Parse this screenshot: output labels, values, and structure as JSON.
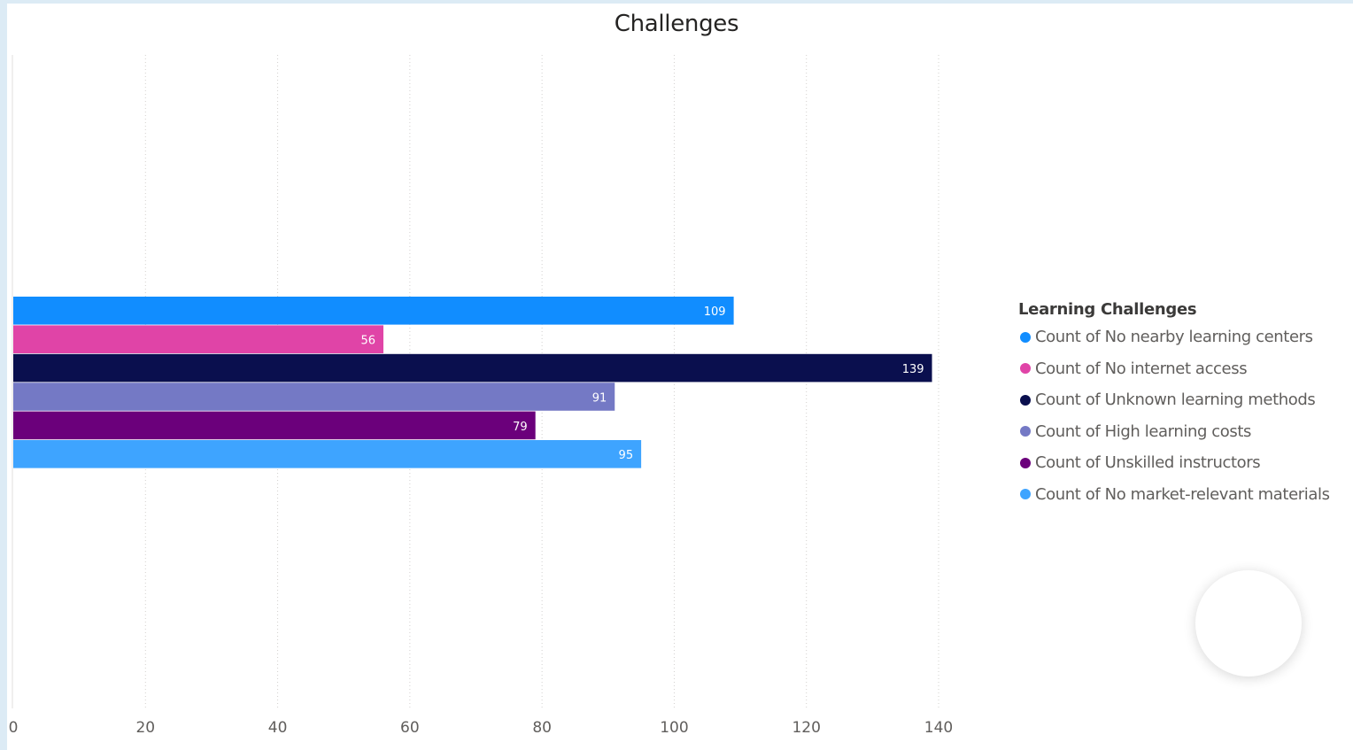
{
  "chart_data": {
    "type": "bar",
    "orientation": "horizontal",
    "title": "Challenges",
    "xlim": [
      0,
      140
    ],
    "x_ticks": [
      "0",
      "20",
      "40",
      "60",
      "80",
      "100",
      "120",
      "140"
    ],
    "grid": "vertical dotted",
    "data_labels": true,
    "legend": {
      "title": "Learning Challenges",
      "placement": "right"
    },
    "series": [
      {
        "name": "Count of No nearby learning centers",
        "values": [
          109
        ],
        "color": "#118DFF"
      },
      {
        "name": "Count of No internet access",
        "values": [
          56
        ],
        "color": "#E044A7"
      },
      {
        "name": "Count of Unknown learning methods",
        "values": [
          139
        ],
        "color": "#0A0F4E"
      },
      {
        "name": "Count of High learning costs",
        "values": [
          91
        ],
        "color": "#7479C5"
      },
      {
        "name": "Count of Unskilled instructors",
        "values": [
          79
        ],
        "color": "#6B007B"
      },
      {
        "name": "Count of No market-relevant materials",
        "values": [
          95
        ],
        "color": "#3EA4FF"
      }
    ]
  }
}
